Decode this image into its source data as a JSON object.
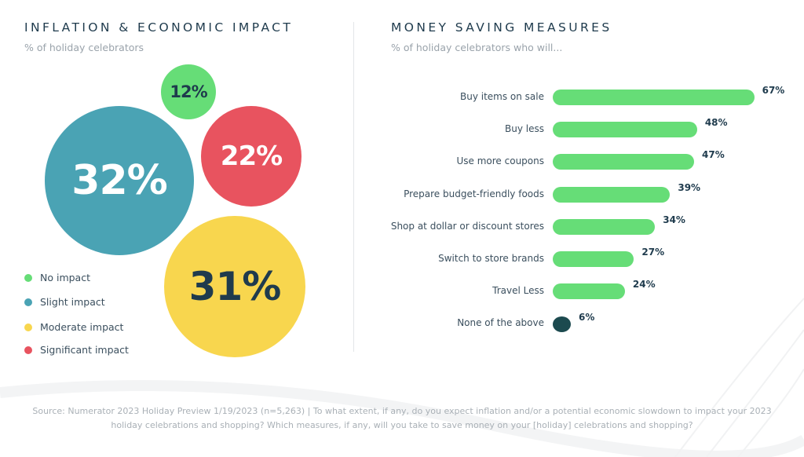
{
  "left_panel": {
    "title": "INFLATION & ECONOMIC IMPACT",
    "subtitle": "% of holiday celebrators",
    "legend": [
      {
        "label": "No impact",
        "color": "#66dd77"
      },
      {
        "label": "Slight impact",
        "color": "#4aa3b4"
      },
      {
        "label": "Moderate impact",
        "color": "#f8d64e"
      },
      {
        "label": "Significant impact",
        "color": "#e8535f"
      }
    ]
  },
  "right_panel": {
    "title": "MONEY SAVING MEASURES",
    "subtitle": "% of holiday celebrators who will..."
  },
  "chart_data": [
    {
      "type": "bubble",
      "title": "INFLATION & ECONOMIC IMPACT",
      "subtitle": "% of holiday celebrators",
      "unit": "%",
      "categories": [
        "No impact",
        "Slight impact",
        "Moderate impact",
        "Significant impact"
      ],
      "values": [
        12,
        32,
        31,
        22
      ],
      "labels": [
        "12%",
        "32%",
        "31%",
        "22%"
      ],
      "colors": [
        "#66dd77",
        "#4aa3b4",
        "#f8d64e",
        "#e8535f"
      ],
      "legend_position": "bottom-left"
    },
    {
      "type": "bar",
      "orientation": "horizontal",
      "title": "MONEY SAVING MEASURES",
      "subtitle": "% of holiday celebrators who will...",
      "unit": "%",
      "categories": [
        "Buy items on sale",
        "Buy less",
        "Use more coupons",
        "Prepare budget-friendly foods",
        "Shop at dollar or discount stores",
        "Switch to store brands",
        "Travel Less",
        "None of the above"
      ],
      "values": [
        67,
        48,
        47,
        39,
        34,
        27,
        24,
        6
      ],
      "labels": [
        "67%",
        "48%",
        "47%",
        "39%",
        "34%",
        "27%",
        "24%",
        "6%"
      ],
      "colors": {
        "bar": "#66dd77",
        "none_bar": "#1c4a4f"
      },
      "grid": false
    }
  ],
  "footer": {
    "source": "Source: Numerator 2023 Holiday Preview 1/19/2023 (n=5,263) | To what extent, if any, do you expect inflation and/or a potential economic slowdown to impact your 2023 holiday celebrations and shopping? Which measures, if any, will you take to save money on your [holiday] celebrations and shopping?"
  }
}
